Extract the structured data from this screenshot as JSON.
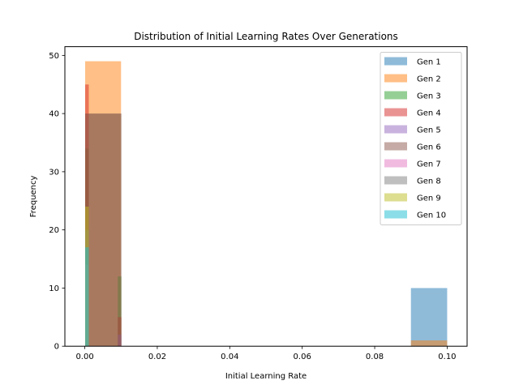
{
  "chart_data": {
    "type": "bar",
    "title": "Distribution of Initial Learning Rates Over Generations",
    "xlabel": "Initial Learning Rate",
    "ylabel": "Frequency",
    "xlim": [
      -0.0055,
      0.1055
    ],
    "ylim": [
      0,
      51.5
    ],
    "xticks": [
      0.0,
      0.02,
      0.04,
      0.06,
      0.08,
      0.1
    ],
    "xtick_labels": [
      "0.00",
      "0.02",
      "0.04",
      "0.06",
      "0.08",
      "0.10"
    ],
    "yticks": [
      0,
      10,
      20,
      30,
      40,
      50
    ],
    "ytick_labels": [
      "0",
      "10",
      "20",
      "30",
      "40",
      "50"
    ],
    "legend_position": "top-right",
    "alpha": 0.5,
    "series": [
      {
        "name": "Gen 1",
        "color": "#1f77b4",
        "bins": [
          [
            0.0001,
            0.01,
            40
          ],
          [
            0.09,
            0.1,
            10
          ]
        ]
      },
      {
        "name": "Gen 2",
        "color": "#ff7f0e",
        "bins": [
          [
            0.0001,
            0.01,
            49
          ],
          [
            0.09,
            0.1,
            1
          ]
        ]
      },
      {
        "name": "Gen 3",
        "color": "#2ca02c",
        "bins": [
          [
            0.0001,
            0.0011,
            34
          ],
          [
            0.0011,
            0.0091,
            0
          ],
          [
            0.0091,
            0.0101,
            12
          ]
        ]
      },
      {
        "name": "Gen 4",
        "color": "#d62728",
        "bins": [
          [
            0.0001,
            0.0011,
            45
          ],
          [
            0.0011,
            0.0091,
            0
          ],
          [
            0.0091,
            0.0101,
            5
          ]
        ]
      },
      {
        "name": "Gen 5",
        "color": "#9467bd",
        "bins": [
          [
            0.0001,
            0.0011,
            17
          ],
          [
            0.0011,
            0.0091,
            0
          ],
          [
            0.0091,
            0.0101,
            2
          ]
        ]
      },
      {
        "name": "Gen 6",
        "color": "#8c564b",
        "bins": [
          [
            0.0001,
            0.0101,
            40
          ]
        ]
      },
      {
        "name": "Gen 7",
        "color": "#e377c2",
        "bins": [
          [
            0.0001,
            0.0011,
            14
          ]
        ]
      },
      {
        "name": "Gen 8",
        "color": "#7f7f7f",
        "bins": [
          [
            0.0001,
            0.0011,
            20
          ]
        ]
      },
      {
        "name": "Gen 9",
        "color": "#bcbd22",
        "bins": [
          [
            0.0001,
            0.0011,
            24
          ]
        ]
      },
      {
        "name": "Gen 10",
        "color": "#17becf",
        "bins": [
          [
            0.0001,
            0.0011,
            17
          ]
        ]
      }
    ]
  }
}
